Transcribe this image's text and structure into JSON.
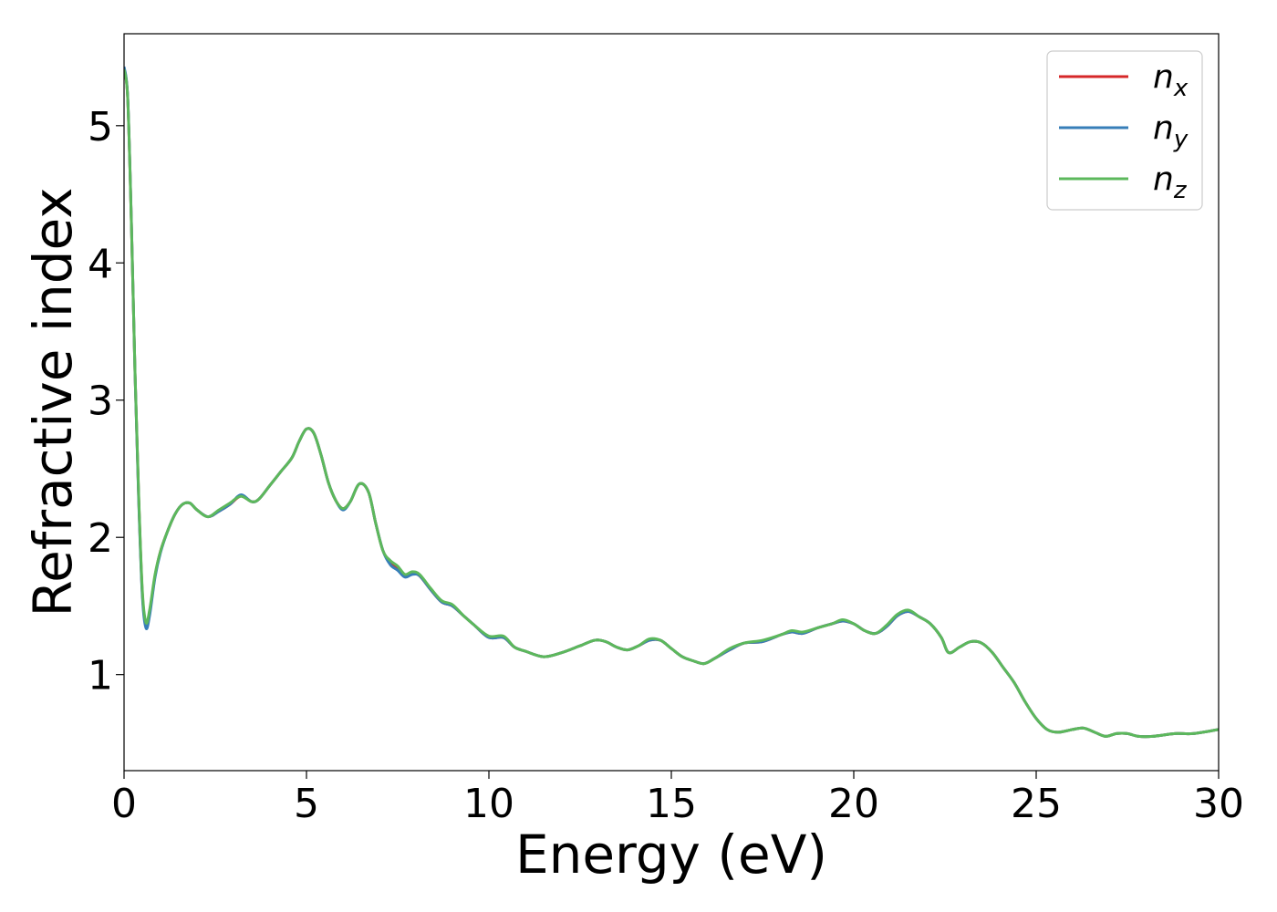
{
  "chart_data": {
    "type": "line",
    "title": "",
    "xlabel": "Energy (eV)",
    "ylabel": "Refractive index",
    "xlim": [
      0,
      30
    ],
    "ylim": [
      0.3,
      5.67
    ],
    "xticks": [
      0,
      5,
      10,
      15,
      20,
      25,
      30
    ],
    "yticks": [
      1,
      2,
      3,
      4,
      5
    ],
    "grid": false,
    "legend_position": "top-right",
    "series": [
      {
        "name": "n",
        "subscript": "x",
        "color": "#d62728",
        "points": [
          [
            0,
            5.42
          ],
          [
            0.1,
            5.2
          ],
          [
            0.2,
            4.3
          ],
          [
            0.3,
            3.2
          ],
          [
            0.4,
            2.3
          ],
          [
            0.5,
            1.6
          ],
          [
            0.6,
            1.36
          ],
          [
            0.7,
            1.45
          ],
          [
            0.85,
            1.72
          ],
          [
            1.0,
            1.9
          ],
          [
            1.2,
            2.05
          ],
          [
            1.4,
            2.17
          ],
          [
            1.6,
            2.24
          ],
          [
            1.8,
            2.25
          ],
          [
            2.0,
            2.2
          ],
          [
            2.3,
            2.15
          ],
          [
            2.6,
            2.19
          ],
          [
            2.9,
            2.24
          ],
          [
            3.2,
            2.3
          ],
          [
            3.5,
            2.26
          ],
          [
            3.7,
            2.28
          ],
          [
            4.0,
            2.38
          ],
          [
            4.3,
            2.48
          ],
          [
            4.6,
            2.58
          ],
          [
            4.8,
            2.7
          ],
          [
            5.0,
            2.79
          ],
          [
            5.2,
            2.76
          ],
          [
            5.4,
            2.6
          ],
          [
            5.6,
            2.4
          ],
          [
            5.8,
            2.27
          ],
          [
            6.0,
            2.21
          ],
          [
            6.2,
            2.26
          ],
          [
            6.45,
            2.39
          ],
          [
            6.7,
            2.33
          ],
          [
            6.9,
            2.1
          ],
          [
            7.1,
            1.9
          ],
          [
            7.3,
            1.82
          ],
          [
            7.5,
            1.78
          ],
          [
            7.7,
            1.72
          ],
          [
            7.9,
            1.74
          ],
          [
            8.1,
            1.72
          ],
          [
            8.4,
            1.62
          ],
          [
            8.7,
            1.53
          ],
          [
            9.0,
            1.5
          ],
          [
            9.3,
            1.43
          ],
          [
            9.6,
            1.36
          ],
          [
            10.0,
            1.27
          ],
          [
            10.4,
            1.27
          ],
          [
            10.7,
            1.2
          ],
          [
            11.0,
            1.17
          ],
          [
            11.5,
            1.13
          ],
          [
            12.0,
            1.16
          ],
          [
            12.5,
            1.21
          ],
          [
            12.9,
            1.25
          ],
          [
            13.2,
            1.24
          ],
          [
            13.5,
            1.2
          ],
          [
            13.8,
            1.18
          ],
          [
            14.1,
            1.21
          ],
          [
            14.4,
            1.25
          ],
          [
            14.7,
            1.25
          ],
          [
            15.0,
            1.19
          ],
          [
            15.3,
            1.13
          ],
          [
            15.6,
            1.1
          ],
          [
            15.9,
            1.08
          ],
          [
            16.2,
            1.12
          ],
          [
            16.6,
            1.18
          ],
          [
            17.0,
            1.23
          ],
          [
            17.5,
            1.24
          ],
          [
            18.0,
            1.29
          ],
          [
            18.3,
            1.31
          ],
          [
            18.6,
            1.3
          ],
          [
            19.0,
            1.34
          ],
          [
            19.4,
            1.37
          ],
          [
            19.7,
            1.39
          ],
          [
            20.0,
            1.37
          ],
          [
            20.3,
            1.32
          ],
          [
            20.6,
            1.3
          ],
          [
            20.9,
            1.35
          ],
          [
            21.2,
            1.43
          ],
          [
            21.5,
            1.46
          ],
          [
            21.8,
            1.42
          ],
          [
            22.1,
            1.37
          ],
          [
            22.4,
            1.27
          ],
          [
            22.6,
            1.16
          ],
          [
            22.9,
            1.2
          ],
          [
            23.2,
            1.24
          ],
          [
            23.5,
            1.23
          ],
          [
            23.8,
            1.16
          ],
          [
            24.1,
            1.05
          ],
          [
            24.4,
            0.94
          ],
          [
            24.7,
            0.8
          ],
          [
            25.0,
            0.68
          ],
          [
            25.3,
            0.6
          ],
          [
            25.6,
            0.58
          ],
          [
            26.0,
            0.6
          ],
          [
            26.3,
            0.61
          ],
          [
            26.6,
            0.58
          ],
          [
            26.9,
            0.55
          ],
          [
            27.2,
            0.57
          ],
          [
            27.5,
            0.57
          ],
          [
            27.8,
            0.55
          ],
          [
            28.2,
            0.55
          ],
          [
            28.8,
            0.57
          ],
          [
            29.3,
            0.57
          ],
          [
            30.0,
            0.6
          ]
        ]
      },
      {
        "name": "n",
        "subscript": "y",
        "color": "#377eb8",
        "points": [
          [
            0,
            5.43
          ],
          [
            0.1,
            5.21
          ],
          [
            0.2,
            4.31
          ],
          [
            0.3,
            3.2
          ],
          [
            0.4,
            2.28
          ],
          [
            0.5,
            1.58
          ],
          [
            0.6,
            1.34
          ],
          [
            0.7,
            1.43
          ],
          [
            0.85,
            1.71
          ],
          [
            1.0,
            1.89
          ],
          [
            1.2,
            2.05
          ],
          [
            1.4,
            2.17
          ],
          [
            1.6,
            2.24
          ],
          [
            1.8,
            2.25
          ],
          [
            2.0,
            2.2
          ],
          [
            2.3,
            2.15
          ],
          [
            2.6,
            2.19
          ],
          [
            2.9,
            2.24
          ],
          [
            3.2,
            2.31
          ],
          [
            3.5,
            2.26
          ],
          [
            3.7,
            2.28
          ],
          [
            4.0,
            2.38
          ],
          [
            4.3,
            2.48
          ],
          [
            4.6,
            2.58
          ],
          [
            4.8,
            2.7
          ],
          [
            5.0,
            2.79
          ],
          [
            5.2,
            2.76
          ],
          [
            5.4,
            2.6
          ],
          [
            5.6,
            2.4
          ],
          [
            5.8,
            2.27
          ],
          [
            6.0,
            2.2
          ],
          [
            6.2,
            2.26
          ],
          [
            6.45,
            2.39
          ],
          [
            6.7,
            2.33
          ],
          [
            6.9,
            2.1
          ],
          [
            7.1,
            1.9
          ],
          [
            7.3,
            1.8
          ],
          [
            7.5,
            1.76
          ],
          [
            7.7,
            1.71
          ],
          [
            7.9,
            1.73
          ],
          [
            8.1,
            1.72
          ],
          [
            8.4,
            1.62
          ],
          [
            8.7,
            1.53
          ],
          [
            9.0,
            1.5
          ],
          [
            9.3,
            1.43
          ],
          [
            9.6,
            1.36
          ],
          [
            10.0,
            1.27
          ],
          [
            10.4,
            1.27
          ],
          [
            10.7,
            1.2
          ],
          [
            11.0,
            1.17
          ],
          [
            11.5,
            1.13
          ],
          [
            12.0,
            1.16
          ],
          [
            12.5,
            1.21
          ],
          [
            12.9,
            1.25
          ],
          [
            13.2,
            1.24
          ],
          [
            13.5,
            1.2
          ],
          [
            13.8,
            1.18
          ],
          [
            14.1,
            1.21
          ],
          [
            14.4,
            1.25
          ],
          [
            14.7,
            1.25
          ],
          [
            15.0,
            1.19
          ],
          [
            15.3,
            1.13
          ],
          [
            15.6,
            1.1
          ],
          [
            15.9,
            1.08
          ],
          [
            16.2,
            1.12
          ],
          [
            16.6,
            1.18
          ],
          [
            17.0,
            1.23
          ],
          [
            17.5,
            1.24
          ],
          [
            18.0,
            1.29
          ],
          [
            18.3,
            1.31
          ],
          [
            18.6,
            1.3
          ],
          [
            19.0,
            1.34
          ],
          [
            19.4,
            1.37
          ],
          [
            19.7,
            1.39
          ],
          [
            20.0,
            1.37
          ],
          [
            20.3,
            1.32
          ],
          [
            20.6,
            1.3
          ],
          [
            20.9,
            1.35
          ],
          [
            21.2,
            1.43
          ],
          [
            21.5,
            1.46
          ],
          [
            21.8,
            1.42
          ],
          [
            22.1,
            1.37
          ],
          [
            22.4,
            1.27
          ],
          [
            22.6,
            1.16
          ],
          [
            22.9,
            1.2
          ],
          [
            23.2,
            1.24
          ],
          [
            23.5,
            1.23
          ],
          [
            23.8,
            1.16
          ],
          [
            24.1,
            1.05
          ],
          [
            24.4,
            0.94
          ],
          [
            24.7,
            0.8
          ],
          [
            25.0,
            0.68
          ],
          [
            25.3,
            0.6
          ],
          [
            25.6,
            0.58
          ],
          [
            26.0,
            0.6
          ],
          [
            26.3,
            0.61
          ],
          [
            26.6,
            0.58
          ],
          [
            26.9,
            0.55
          ],
          [
            27.2,
            0.57
          ],
          [
            27.5,
            0.57
          ],
          [
            27.8,
            0.55
          ],
          [
            28.2,
            0.55
          ],
          [
            28.8,
            0.57
          ],
          [
            29.3,
            0.57
          ],
          [
            30.0,
            0.6
          ]
        ]
      },
      {
        "name": "n",
        "subscript": "z",
        "color": "#5cb85c",
        "points": [
          [
            0,
            5.41
          ],
          [
            0.1,
            5.2
          ],
          [
            0.2,
            4.3
          ],
          [
            0.3,
            3.21
          ],
          [
            0.4,
            2.32
          ],
          [
            0.5,
            1.62
          ],
          [
            0.6,
            1.38
          ],
          [
            0.7,
            1.47
          ],
          [
            0.85,
            1.73
          ],
          [
            1.0,
            1.9
          ],
          [
            1.2,
            2.05
          ],
          [
            1.4,
            2.17
          ],
          [
            1.6,
            2.24
          ],
          [
            1.8,
            2.25
          ],
          [
            2.0,
            2.2
          ],
          [
            2.3,
            2.15
          ],
          [
            2.6,
            2.2
          ],
          [
            2.9,
            2.25
          ],
          [
            3.2,
            2.3
          ],
          [
            3.5,
            2.26
          ],
          [
            3.7,
            2.28
          ],
          [
            4.0,
            2.38
          ],
          [
            4.3,
            2.48
          ],
          [
            4.6,
            2.58
          ],
          [
            4.8,
            2.7
          ],
          [
            5.0,
            2.79
          ],
          [
            5.2,
            2.76
          ],
          [
            5.4,
            2.6
          ],
          [
            5.6,
            2.4
          ],
          [
            5.8,
            2.27
          ],
          [
            6.0,
            2.21
          ],
          [
            6.2,
            2.26
          ],
          [
            6.45,
            2.39
          ],
          [
            6.7,
            2.33
          ],
          [
            6.9,
            2.1
          ],
          [
            7.1,
            1.9
          ],
          [
            7.3,
            1.83
          ],
          [
            7.5,
            1.79
          ],
          [
            7.7,
            1.73
          ],
          [
            7.9,
            1.75
          ],
          [
            8.1,
            1.73
          ],
          [
            8.4,
            1.63
          ],
          [
            8.7,
            1.54
          ],
          [
            9.0,
            1.51
          ],
          [
            9.3,
            1.43
          ],
          [
            9.6,
            1.36
          ],
          [
            10.0,
            1.28
          ],
          [
            10.4,
            1.28
          ],
          [
            10.7,
            1.2
          ],
          [
            11.0,
            1.17
          ],
          [
            11.5,
            1.13
          ],
          [
            12.0,
            1.16
          ],
          [
            12.5,
            1.21
          ],
          [
            12.9,
            1.25
          ],
          [
            13.2,
            1.24
          ],
          [
            13.5,
            1.2
          ],
          [
            13.8,
            1.18
          ],
          [
            14.1,
            1.21
          ],
          [
            14.4,
            1.26
          ],
          [
            14.7,
            1.25
          ],
          [
            15.0,
            1.19
          ],
          [
            15.3,
            1.13
          ],
          [
            15.6,
            1.1
          ],
          [
            15.9,
            1.08
          ],
          [
            16.2,
            1.12
          ],
          [
            16.6,
            1.19
          ],
          [
            17.0,
            1.23
          ],
          [
            17.5,
            1.25
          ],
          [
            18.0,
            1.29
          ],
          [
            18.3,
            1.32
          ],
          [
            18.6,
            1.31
          ],
          [
            19.0,
            1.34
          ],
          [
            19.4,
            1.37
          ],
          [
            19.7,
            1.4
          ],
          [
            20.0,
            1.37
          ],
          [
            20.3,
            1.32
          ],
          [
            20.6,
            1.3
          ],
          [
            20.9,
            1.36
          ],
          [
            21.2,
            1.44
          ],
          [
            21.5,
            1.47
          ],
          [
            21.8,
            1.42
          ],
          [
            22.1,
            1.37
          ],
          [
            22.4,
            1.27
          ],
          [
            22.6,
            1.16
          ],
          [
            22.9,
            1.2
          ],
          [
            23.2,
            1.24
          ],
          [
            23.5,
            1.23
          ],
          [
            23.8,
            1.16
          ],
          [
            24.1,
            1.05
          ],
          [
            24.4,
            0.94
          ],
          [
            24.7,
            0.8
          ],
          [
            25.0,
            0.68
          ],
          [
            25.3,
            0.6
          ],
          [
            25.6,
            0.58
          ],
          [
            26.0,
            0.6
          ],
          [
            26.3,
            0.61
          ],
          [
            26.6,
            0.58
          ],
          [
            26.9,
            0.55
          ],
          [
            27.2,
            0.57
          ],
          [
            27.5,
            0.57
          ],
          [
            27.8,
            0.55
          ],
          [
            28.2,
            0.55
          ],
          [
            28.8,
            0.57
          ],
          [
            29.3,
            0.57
          ],
          [
            30.0,
            0.6
          ]
        ]
      }
    ]
  }
}
